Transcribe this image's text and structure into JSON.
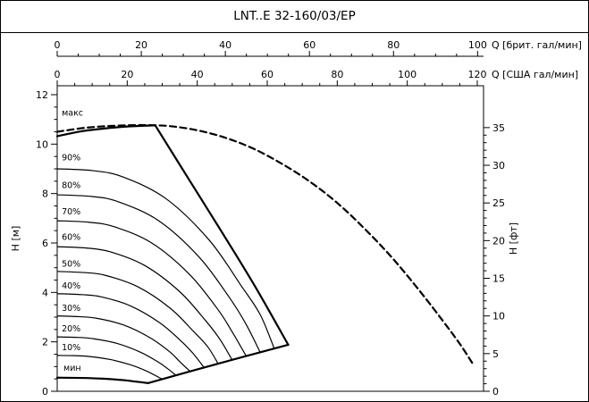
{
  "title": "LNT..E 32-160/03/EP",
  "colors": {
    "line": "#000000",
    "background": "#ffffff"
  },
  "chart_data": {
    "type": "line",
    "title": "LNT..E 32-160/03/EP",
    "grid": false,
    "legend": "none",
    "x_axes": [
      {
        "id": "brit",
        "label": "Q [брит. гал/мин]",
        "unit_to_usgpm": 1.2009,
        "major_ticks": [
          0,
          20,
          40,
          60,
          80,
          100
        ],
        "minor_step": 5,
        "max": 100
      },
      {
        "id": "usa",
        "label": "Q [США гал/мин]",
        "unit_to_usgpm": 1.0,
        "major_ticks": [
          0,
          20,
          40,
          60,
          80,
          100,
          120
        ],
        "minor_step": 5,
        "max": 120
      }
    ],
    "y_left": {
      "label": "H [м]",
      "major_ticks": [
        0,
        2,
        4,
        6,
        8,
        10,
        12
      ],
      "minor_step": 0.5,
      "range": [
        0,
        12
      ]
    },
    "y_right": {
      "label": "H [фт]",
      "major_ticks": [
        0,
        5,
        10,
        15,
        20,
        25,
        30,
        35
      ],
      "minor_step": 1,
      "ft_to_m": 0.3048
    },
    "x_max_usgpm": 121.8,
    "series": [
      {
        "name": "max-curve-full-range",
        "label": null,
        "style": "dashed",
        "width": 2.2,
        "points": [
          [
            0,
            10.5
          ],
          [
            8,
            10.66
          ],
          [
            16,
            10.74
          ],
          [
            24,
            10.77
          ],
          [
            32,
            10.73
          ],
          [
            40,
            10.56
          ],
          [
            48,
            10.26
          ],
          [
            56,
            9.82
          ],
          [
            64,
            9.22
          ],
          [
            72,
            8.5
          ],
          [
            80,
            7.62
          ],
          [
            88,
            6.55
          ],
          [
            96,
            5.35
          ],
          [
            104,
            3.98
          ],
          [
            110,
            2.88
          ],
          [
            115,
            1.92
          ],
          [
            119,
            1.05
          ]
        ]
      },
      {
        "name": "max-curve-top",
        "label": "макс",
        "label_at": [
          1.3,
          11.15
        ],
        "style": "solid",
        "width": 2.2,
        "points": [
          [
            0,
            10.32
          ],
          [
            7,
            10.52
          ],
          [
            14,
            10.64
          ],
          [
            21,
            10.72
          ],
          [
            28,
            10.76
          ]
        ]
      },
      {
        "name": "max-curve-descent",
        "label": null,
        "style": "solid",
        "width": 2.2,
        "points": [
          [
            28,
            10.76
          ],
          [
            37.5,
            8.6
          ],
          [
            47,
            6.45
          ],
          [
            56.5,
            4.25
          ],
          [
            66,
            1.88
          ]
        ]
      },
      {
        "name": "curve-90pct",
        "label": "90%",
        "label_at": [
          1.3,
          9.35
        ],
        "style": "solid",
        "width": 1.2,
        "points": [
          [
            0,
            9.0
          ],
          [
            10,
            8.93
          ],
          [
            18.6,
            8.68
          ],
          [
            31,
            7.8
          ],
          [
            43.4,
            6.12
          ],
          [
            52.7,
            4.24
          ],
          [
            58,
            3.1
          ],
          [
            62,
            1.73
          ]
        ]
      },
      {
        "name": "curve-80pct",
        "label": "80%",
        "label_at": [
          1.3,
          8.22
        ],
        "style": "solid",
        "width": 1.2,
        "points": [
          [
            0,
            7.95
          ],
          [
            10,
            7.88
          ],
          [
            17.4,
            7.67
          ],
          [
            29,
            6.9
          ],
          [
            40.6,
            5.42
          ],
          [
            49.3,
            3.77
          ],
          [
            54,
            2.7
          ],
          [
            58,
            1.57
          ]
        ]
      },
      {
        "name": "curve-70pct",
        "label": "70%",
        "label_at": [
          1.3,
          7.15
        ],
        "style": "solid",
        "width": 1.2,
        "points": [
          [
            0,
            6.9
          ],
          [
            9,
            6.84
          ],
          [
            16.2,
            6.66
          ],
          [
            27,
            6.0
          ],
          [
            37.8,
            4.73
          ],
          [
            45.9,
            3.31
          ],
          [
            50,
            2.4
          ],
          [
            54,
            1.42
          ]
        ]
      },
      {
        "name": "curve-60pct",
        "label": "60%",
        "label_at": [
          1.3,
          6.12
        ],
        "style": "solid",
        "width": 1.2,
        "points": [
          [
            0,
            5.85
          ],
          [
            8,
            5.8
          ],
          [
            15,
            5.65
          ],
          [
            25,
            5.09
          ],
          [
            35,
            4.03
          ],
          [
            42.5,
            2.84
          ],
          [
            46.5,
            2.1
          ],
          [
            50,
            1.26
          ]
        ]
      },
      {
        "name": "curve-50pct",
        "label": "50%",
        "label_at": [
          1.3,
          5.05
        ],
        "style": "solid",
        "width": 1.2,
        "points": [
          [
            0,
            4.85
          ],
          [
            8,
            4.8
          ],
          [
            13.8,
            4.69
          ],
          [
            23,
            4.23
          ],
          [
            32.2,
            3.37
          ],
          [
            39.1,
            2.4
          ],
          [
            43,
            1.8
          ],
          [
            46,
            1.11
          ]
        ]
      },
      {
        "name": "curve-40pct",
        "label": "40%",
        "label_at": [
          1.3,
          4.15
        ],
        "style": "solid",
        "width": 1.2,
        "points": [
          [
            0,
            3.95
          ],
          [
            7,
            3.91
          ],
          [
            12.6,
            3.82
          ],
          [
            21,
            3.45
          ],
          [
            29.4,
            2.76
          ],
          [
            35.7,
            1.99
          ],
          [
            39,
            1.5
          ],
          [
            42,
            0.95
          ]
        ]
      },
      {
        "name": "curve-30pct",
        "label": "30%",
        "label_at": [
          1.3,
          3.25
        ],
        "style": "solid",
        "width": 1.2,
        "points": [
          [
            0,
            3.05
          ],
          [
            6,
            3.02
          ],
          [
            11.4,
            2.95
          ],
          [
            19,
            2.68
          ],
          [
            26.6,
            2.16
          ],
          [
            32.3,
            1.58
          ],
          [
            35,
            1.2
          ],
          [
            38,
            0.8
          ]
        ]
      },
      {
        "name": "curve-20pct",
        "label": "20%",
        "label_at": [
          1.3,
          2.42
        ],
        "style": "solid",
        "width": 1.2,
        "points": [
          [
            0,
            2.2
          ],
          [
            6,
            2.18
          ],
          [
            10.2,
            2.13
          ],
          [
            17,
            1.94
          ],
          [
            23.8,
            1.58
          ],
          [
            28.9,
            1.18
          ],
          [
            31.5,
            0.92
          ],
          [
            34,
            0.64
          ]
        ]
      },
      {
        "name": "curve-10pct",
        "label": "10%",
        "label_at": [
          1.3,
          1.66
        ],
        "style": "solid",
        "width": 1.2,
        "points": [
          [
            0,
            1.45
          ],
          [
            5,
            1.44
          ],
          [
            9,
            1.41
          ],
          [
            15,
            1.29
          ],
          [
            21,
            1.07
          ],
          [
            25.5,
            0.82
          ],
          [
            30,
            0.49
          ]
        ]
      },
      {
        "name": "min-curve",
        "label": "мин",
        "label_at": [
          1.8,
          0.84
        ],
        "style": "solid",
        "width": 2.2,
        "points": [
          [
            0,
            0.55
          ],
          [
            7,
            0.54
          ],
          [
            13,
            0.51
          ],
          [
            19,
            0.45
          ],
          [
            26,
            0.33
          ]
        ]
      },
      {
        "name": "duty-range-bottom-boundary",
        "label": null,
        "style": "solid",
        "width": 2.2,
        "points": [
          [
            26,
            0.33
          ],
          [
            46,
            1.12
          ],
          [
            66,
            1.88
          ]
        ]
      }
    ]
  }
}
